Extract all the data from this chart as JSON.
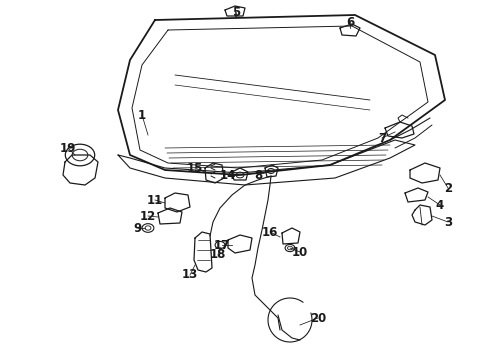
{
  "bg_color": "#ffffff",
  "line_color": "#1a1a1a",
  "label_fontsize": 8.5,
  "label_fontweight": "bold"
}
